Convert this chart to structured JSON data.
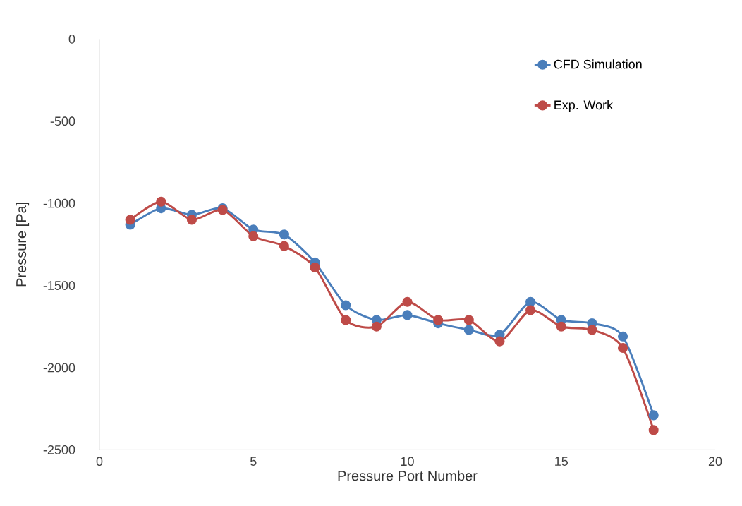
{
  "chart_data": {
    "type": "line",
    "xlabel": "Pressure Port Number",
    "ylabel": "Pressure [Pa]",
    "x": [
      1,
      2,
      3,
      4,
      5,
      6,
      7,
      8,
      9,
      10,
      11,
      12,
      13,
      14,
      15,
      16,
      17,
      18
    ],
    "series": [
      {
        "name": "CFD Simulation",
        "color": "#4a7ebb",
        "values": [
          -1130,
          -1030,
          -1070,
          -1030,
          -1160,
          -1190,
          -1360,
          -1620,
          -1710,
          -1680,
          -1730,
          -1770,
          -1800,
          -1600,
          -1710,
          -1730,
          -1810,
          -2290
        ]
      },
      {
        "name": "Exp. Work",
        "color": "#be4b48",
        "values": [
          -1100,
          -990,
          -1100,
          -1040,
          -1200,
          -1260,
          -1390,
          -1710,
          -1750,
          -1600,
          -1710,
          -1710,
          -1840,
          -1650,
          -1750,
          -1770,
          -1880,
          -2380
        ]
      }
    ],
    "xlim": [
      0,
      20
    ],
    "xticks": [
      0,
      5,
      10,
      15,
      20
    ],
    "ylim": [
      -2500,
      0
    ],
    "yticks": [
      -2500,
      -2000,
      -1500,
      -1000,
      -500,
      0
    ],
    "marker": "circle",
    "line_style": "solid",
    "legend": "top right",
    "grid": false
  }
}
